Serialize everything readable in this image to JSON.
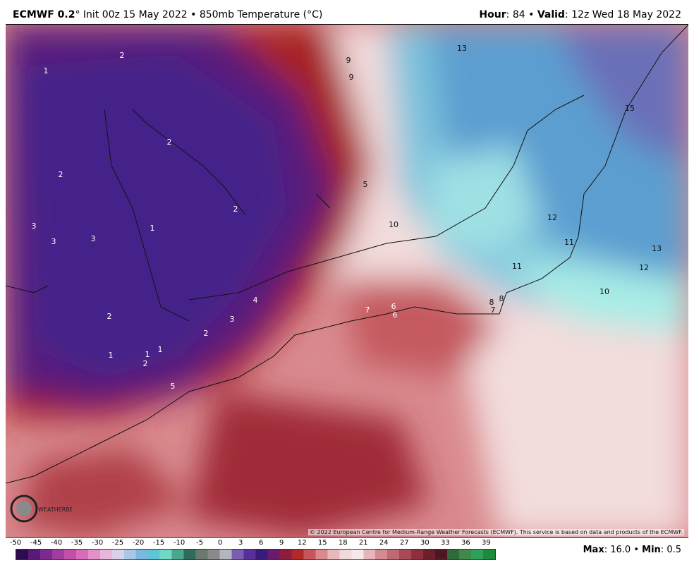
{
  "header": {
    "model": "ECMWF 0.2",
    "deg": "°",
    "init": "Init 00z 15 May 2022",
    "sep": "•",
    "field": "850mb Temperature (°C)",
    "hour_label": "Hour",
    "hour_value": "84",
    "valid_label": "Valid",
    "valid_value": "12z Wed 18 May 2022"
  },
  "copyright": "© 2022 European Centre for Medium-Range Weather Forecasts (ECMWF). This service is based on data and products of the ECMWF.",
  "logo": {
    "text": "WEATHERBELL"
  },
  "colorbar": {
    "ticks": [
      "-50",
      "-45",
      "-40",
      "-35",
      "-30",
      "-25",
      "-20",
      "-15",
      "-10",
      "-5",
      "0",
      "3",
      "6",
      "9",
      "12",
      "15",
      "18",
      "21",
      "24",
      "27",
      "30",
      "33",
      "36",
      "39"
    ],
    "colors": [
      "#2d0b4e",
      "#5a1a7a",
      "#7d2a8f",
      "#a23c9e",
      "#c44fa8",
      "#d96cb8",
      "#e391c7",
      "#e9b5d8",
      "#d9d0ea",
      "#a9c7e6",
      "#7ab8e0",
      "#5ec5d6",
      "#6fd9c5",
      "#4aa68e",
      "#2f6b5a",
      "#6b7a6f",
      "#8a8a8a",
      "#b5b5c0",
      "#7a5fb0",
      "#5a2f9a",
      "#3b1a7e",
      "#6a1b6e",
      "#8f1c3c",
      "#b02a2a",
      "#c8555a",
      "#d98a8e",
      "#e8b8ba",
      "#f2d9da",
      "#f6e8e8",
      "#e6b5b9",
      "#d48a90",
      "#bf6a72",
      "#a84a55",
      "#8f2f3e",
      "#6d1f2c",
      "#4d1620",
      "#2f6b3a",
      "#3f8a4a",
      "#2ea05a",
      "#1d8a3d"
    ]
  },
  "max_label": "Max",
  "max_value": "16.0",
  "min_label": "Min",
  "min_value": "0.5",
  "map_labels": [
    "2",
    "1",
    "9",
    "9",
    "13",
    "15",
    "2",
    "2",
    "5",
    "2",
    "1",
    "10",
    "12",
    "11",
    "11",
    "13",
    "12",
    "3",
    "3",
    "3",
    "4",
    "3",
    "2",
    "1",
    "1",
    "1",
    "2",
    "10",
    "8",
    "8",
    "7",
    "7",
    "6",
    "6",
    "2",
    "5"
  ]
}
